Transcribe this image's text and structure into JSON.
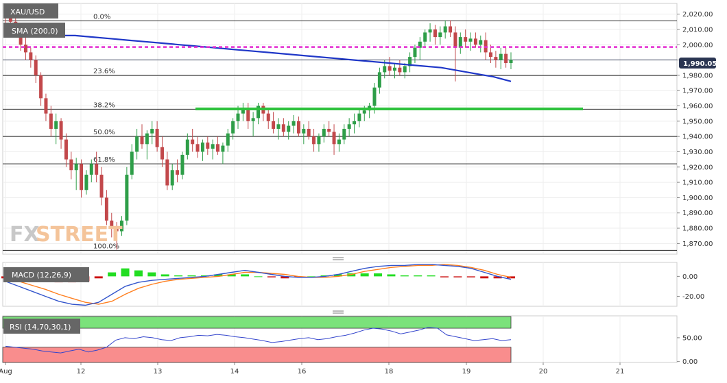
{
  "chart_data": {
    "type": "candlestick",
    "symbol": "XAU/USD",
    "indicator_label": "SMA (200,0)",
    "watermark": {
      "left": "FX",
      "right": "STREET"
    },
    "current_price": "1,990.05",
    "price_ylim": [
      1863,
      2027
    ],
    "y_ticks": [
      "2,020.00",
      "2,010.00",
      "2,000.00",
      "1,990.00",
      "1,980.00",
      "1,970.00",
      "1,960.00",
      "1,950.00",
      "1,940.00",
      "1,930.00",
      "1,920.00",
      "1,910.00",
      "1,900.00",
      "1,890.00",
      "1,880.00",
      "1,870.00"
    ],
    "x_labels": [
      "Aug",
      "12",
      "13",
      "14",
      "16",
      "18",
      "19",
      "20",
      "21"
    ],
    "fib_levels": [
      {
        "label": "0.0%",
        "value": 2015.6
      },
      {
        "label": "23.6%",
        "value": 1979.9
      },
      {
        "label": "38.2%",
        "value": 1957.8
      },
      {
        "label": "50.0%",
        "value": 1940.0
      },
      {
        "label": "61.8%",
        "value": 1922.1
      },
      {
        "label": "100.0%",
        "value": 1865.5
      }
    ],
    "resistance_level": 1998.5,
    "support_zone": 1958.0,
    "candles": [
      [
        2021,
        2027,
        2014,
        2019
      ],
      [
        2019,
        2025,
        2012,
        2015
      ],
      [
        2015,
        2020,
        2005,
        2008
      ],
      [
        2008,
        2010,
        1996,
        2000
      ],
      [
        2000,
        2005,
        1990,
        1995
      ],
      [
        1995,
        1998,
        1985,
        1990
      ],
      [
        1990,
        1993,
        1975,
        1980
      ],
      [
        1980,
        1982,
        1960,
        1965
      ],
      [
        1965,
        1968,
        1950,
        1955
      ],
      [
        1955,
        1960,
        1940,
        1945
      ],
      [
        1945,
        1955,
        1935,
        1950
      ],
      [
        1950,
        1952,
        1932,
        1938
      ],
      [
        1938,
        1942,
        1920,
        1925
      ],
      [
        1925,
        1930,
        1912,
        1918
      ],
      [
        1918,
        1926,
        1905,
        1922
      ],
      [
        1922,
        1925,
        1900,
        1905
      ],
      [
        1905,
        1918,
        1902,
        1915
      ],
      [
        1915,
        1925,
        1910,
        1922
      ],
      [
        1922,
        1930,
        1910,
        1915
      ],
      [
        1915,
        1920,
        1895,
        1900
      ],
      [
        1900,
        1905,
        1882,
        1885
      ],
      [
        1885,
        1890,
        1874,
        1880
      ],
      [
        1880,
        1884,
        1866,
        1878
      ],
      [
        1878,
        1888,
        1875,
        1885
      ],
      [
        1885,
        1920,
        1882,
        1915
      ],
      [
        1915,
        1935,
        1912,
        1930
      ],
      [
        1930,
        1945,
        1925,
        1940
      ],
      [
        1940,
        1948,
        1932,
        1935
      ],
      [
        1935,
        1944,
        1925,
        1942
      ],
      [
        1942,
        1950,
        1935,
        1945
      ],
      [
        1945,
        1950,
        1930,
        1933
      ],
      [
        1933,
        1940,
        1920,
        1925
      ],
      [
        1925,
        1930,
        1905,
        1908
      ],
      [
        1908,
        1922,
        1905,
        1918
      ],
      [
        1918,
        1925,
        1910,
        1915
      ],
      [
        1915,
        1930,
        1912,
        1928
      ],
      [
        1928,
        1942,
        1925,
        1938
      ],
      [
        1938,
        1945,
        1930,
        1935
      ],
      [
        1935,
        1940,
        1926,
        1930
      ],
      [
        1930,
        1938,
        1924,
        1936
      ],
      [
        1936,
        1940,
        1928,
        1932
      ],
      [
        1932,
        1938,
        1925,
        1935
      ],
      [
        1935,
        1940,
        1928,
        1930
      ],
      [
        1930,
        1936,
        1922,
        1934
      ],
      [
        1934,
        1945,
        1930,
        1942
      ],
      [
        1942,
        1952,
        1938,
        1950
      ],
      [
        1950,
        1960,
        1945,
        1955
      ],
      [
        1955,
        1962,
        1950,
        1958
      ],
      [
        1958,
        1962,
        1945,
        1950
      ],
      [
        1950,
        1956,
        1940,
        1952
      ],
      [
        1952,
        1962,
        1948,
        1960
      ],
      [
        1960,
        1962,
        1950,
        1955
      ],
      [
        1955,
        1958,
        1945,
        1950
      ],
      [
        1950,
        1956,
        1942,
        1945
      ],
      [
        1945,
        1952,
        1938,
        1948
      ],
      [
        1948,
        1952,
        1940,
        1943
      ],
      [
        1943,
        1950,
        1938,
        1947
      ],
      [
        1947,
        1954,
        1942,
        1950
      ],
      [
        1950,
        1953,
        1940,
        1942
      ],
      [
        1942,
        1948,
        1935,
        1945
      ],
      [
        1945,
        1950,
        1938,
        1940
      ],
      [
        1940,
        1945,
        1930,
        1935
      ],
      [
        1935,
        1942,
        1930,
        1940
      ],
      [
        1940,
        1948,
        1936,
        1945
      ],
      [
        1945,
        1950,
        1940,
        1943
      ],
      [
        1943,
        1948,
        1928,
        1935
      ],
      [
        1935,
        1942,
        1930,
        1938
      ],
      [
        1938,
        1948,
        1935,
        1945
      ],
      [
        1945,
        1952,
        1940,
        1948
      ],
      [
        1948,
        1955,
        1942,
        1950
      ],
      [
        1950,
        1958,
        1946,
        1955
      ],
      [
        1955,
        1960,
        1950,
        1957
      ],
      [
        1957,
        1962,
        1952,
        1960
      ],
      [
        1960,
        1975,
        1955,
        1972
      ],
      [
        1972,
        1985,
        1968,
        1982
      ],
      [
        1982,
        1990,
        1978,
        1986
      ],
      [
        1986,
        1992,
        1980,
        1983
      ],
      [
        1983,
        1988,
        1978,
        1985
      ],
      [
        1985,
        1990,
        1980,
        1982
      ],
      [
        1982,
        1988,
        1978,
        1986
      ],
      [
        1986,
        1995,
        1982,
        1992
      ],
      [
        1992,
        2000,
        1988,
        1998
      ],
      [
        1998,
        2005,
        1990,
        2002
      ],
      [
        2002,
        2010,
        1998,
        2008
      ],
      [
        2008,
        2014,
        2002,
        2010
      ],
      [
        2010,
        2013,
        2000,
        2005
      ],
      [
        2005,
        2012,
        2000,
        2008
      ],
      [
        2008,
        2016,
        2004,
        2012
      ],
      [
        2012,
        2016,
        2005,
        2008
      ],
      [
        2008,
        2012,
        1976,
        1998
      ],
      [
        1998,
        2008,
        1994,
        2005
      ],
      [
        2005,
        2010,
        1998,
        2002
      ],
      [
        2002,
        2008,
        1996,
        2004
      ],
      [
        2004,
        2008,
        1998,
        2000
      ],
      [
        2000,
        2006,
        1995,
        2003
      ],
      [
        2003,
        2008,
        1990,
        1995
      ],
      [
        1995,
        2000,
        1988,
        1992
      ],
      [
        1992,
        1996,
        1985,
        1990
      ],
      [
        1990,
        1998,
        1984,
        1994
      ],
      [
        1994,
        1998,
        1985,
        1988
      ],
      [
        1988,
        1995,
        1984,
        1990
      ]
    ],
    "sma200": [
      2007,
      2007,
      2007,
      2006,
      2006,
      2005,
      2004,
      2003,
      2002,
      2001,
      2000,
      1999,
      1998,
      1997,
      1996,
      1995,
      1994,
      1993,
      1992,
      1991,
      1990,
      1989,
      1988,
      1987,
      1986,
      1985,
      1983,
      1981,
      1979,
      1976
    ],
    "macd_label": "MACD (12,26,9)",
    "macd_ylim": [
      -30,
      14
    ],
    "macd_ticks": [
      "0.00",
      "-20.00"
    ],
    "macd_line": [
      -5,
      -10,
      -15,
      -20,
      -25,
      -28,
      -29,
      -26,
      -18,
      -10,
      -6,
      -4,
      -3,
      -2,
      -1,
      0,
      2,
      4,
      6,
      4,
      2,
      0,
      -1,
      -1,
      0,
      2,
      5,
      8,
      10,
      11,
      11,
      12,
      12,
      11,
      10,
      8,
      4,
      0,
      -3
    ],
    "signal_line": [
      -2,
      -5,
      -9,
      -13,
      -18,
      -22,
      -26,
      -28,
      -25,
      -18,
      -12,
      -8,
      -5,
      -3,
      -2,
      -1,
      0,
      2,
      4,
      4,
      3,
      2,
      0,
      -1,
      -1,
      0,
      2,
      5,
      7,
      9,
      10,
      11,
      11,
      12,
      11,
      9,
      6,
      2,
      -1
    ],
    "macd_hist": [
      -2,
      -3,
      -4,
      -5,
      -6,
      -6,
      -5,
      -2,
      4,
      8,
      6,
      4,
      2,
      1,
      1,
      1,
      2,
      2,
      2,
      0,
      -1,
      -2,
      -1,
      0,
      1,
      2,
      3,
      3,
      3,
      2,
      1,
      1,
      1,
      -1,
      -1,
      -1,
      -2,
      -2,
      -2
    ],
    "rsi_label": "RSI (14,70,30,1)",
    "rsi_ylim": [
      -2,
      96
    ],
    "rsi_ticks": [
      "50.00",
      "0.00"
    ],
    "rsi_overbought": 70,
    "rsi_oversold": 30,
    "rsi_values": [
      32,
      30,
      28,
      26,
      22,
      20,
      18,
      22,
      26,
      20,
      24,
      30,
      45,
      50,
      48,
      52,
      50,
      46,
      44,
      50,
      52,
      55,
      54,
      57,
      55,
      52,
      50,
      47,
      44,
      40,
      42,
      45,
      48,
      50,
      46,
      48,
      52,
      55,
      60,
      66,
      70,
      68,
      64,
      58,
      62,
      66,
      72,
      70,
      56,
      52,
      48,
      44,
      46,
      48,
      44,
      46
    ],
    "colors": {
      "bull": "#2e9e48",
      "bear": "#c2484b",
      "sma": "#1f37c8",
      "resistance": "#e32bd0",
      "support": "#2ec23d",
      "macd": "#3355cc",
      "signal": "#ff7f1f",
      "rsi_line": "#3344cc",
      "overbought_fill": "#7be27b",
      "oversold_fill": "#f98d8d"
    }
  }
}
